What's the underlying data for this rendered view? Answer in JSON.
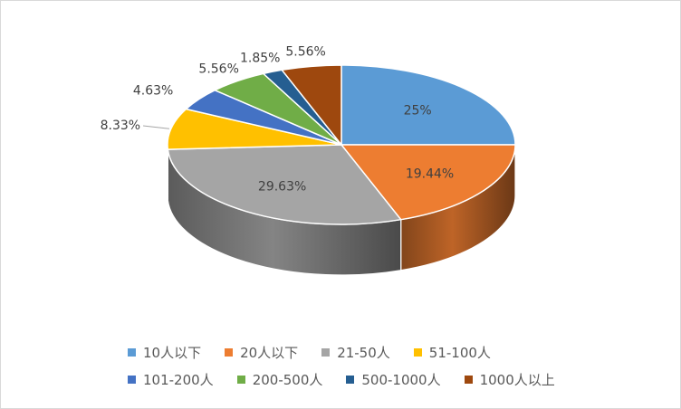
{
  "chart_data": {
    "type": "pie",
    "style": "3d",
    "categories": [
      "10人以下",
      "20人以下",
      "21-50人",
      "51-100人",
      "101-200人",
      "200-500人",
      "500-1000人",
      "1000人以上"
    ],
    "values": [
      25,
      19.44,
      29.63,
      8.33,
      4.63,
      5.56,
      1.85,
      5.56
    ],
    "data_labels": [
      "25%",
      "19.44%",
      "29.63%",
      "8.33%",
      "4.63%",
      "5.56%",
      "1.85%",
      "5.56%"
    ],
    "colors": [
      "#5b9bd5",
      "#ed7d31",
      "#a5a5a5",
      "#ffc000",
      "#4472c4",
      "#70ad47",
      "#255e91",
      "#9e480e"
    ],
    "title": "",
    "legend_position": "bottom"
  }
}
